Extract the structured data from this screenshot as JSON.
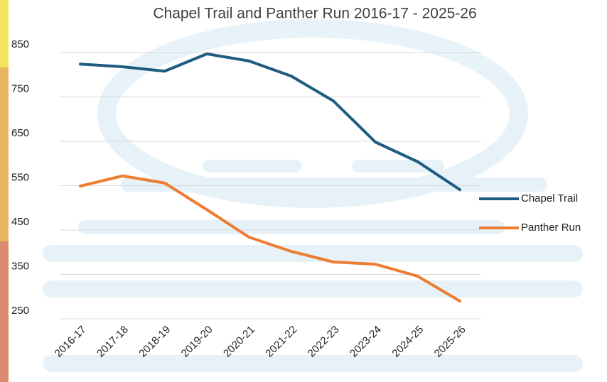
{
  "chart_data": {
    "type": "line",
    "title": "Chapel Trail and Panther Run 2016-17 - 2025-26",
    "categories": [
      "2016-17",
      "2017-18",
      "2018-19",
      "2019-20",
      "2020-21",
      "2021-22",
      "2022-23",
      "2023-24",
      "2024-25",
      "2025-26"
    ],
    "series": [
      {
        "name": "Chapel Trail",
        "color": "#1f5c7f",
        "values": [
          824,
          818,
          808,
          847,
          831,
          797,
          741,
          648,
          604,
          541
        ]
      },
      {
        "name": "Panther Run",
        "color": "#ed7d31",
        "values": [
          549,
          572,
          556,
          496,
          434,
          402,
          378,
          373,
          346,
          290
        ]
      }
    ],
    "ylim": [
      250,
      850
    ],
    "yticks": [
      250,
      350,
      450,
      550,
      650,
      750,
      850
    ],
    "grid": true,
    "legend": "right"
  }
}
